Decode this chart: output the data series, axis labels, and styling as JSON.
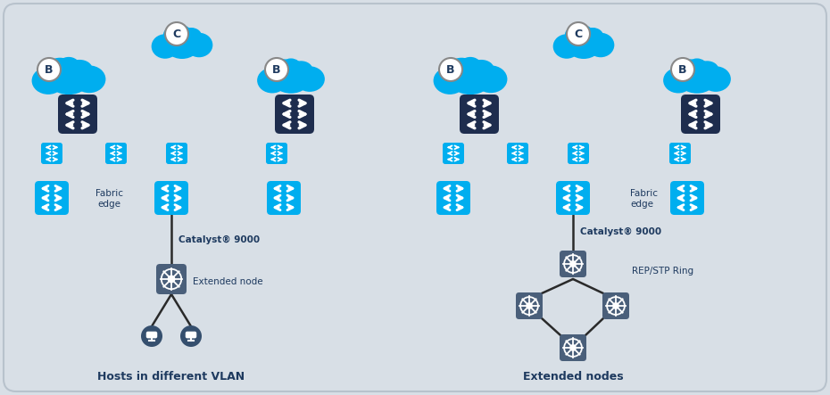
{
  "bg_color": "#d8dfe6",
  "cyan_color": "#00aeef",
  "dark_navy": "#1e2d4e",
  "slate": "#4a5f7a",
  "white": "#ffffff",
  "text_dark": "#1e3a5f",
  "title1": "Hosts in different VLAN",
  "title2": "Extended nodes",
  "label_catalyst1": "Catalyst® 9000",
  "label_fabric": "Fabric\nedge",
  "label_ext_node": "Extended node",
  "label_rep": "REP/STP Ring",
  "label_catalyst2": "Catalyst® 9000",
  "label_fabric2": "Fabric\nedge",
  "figw": 9.3,
  "figh": 4.43,
  "dpi": 100
}
